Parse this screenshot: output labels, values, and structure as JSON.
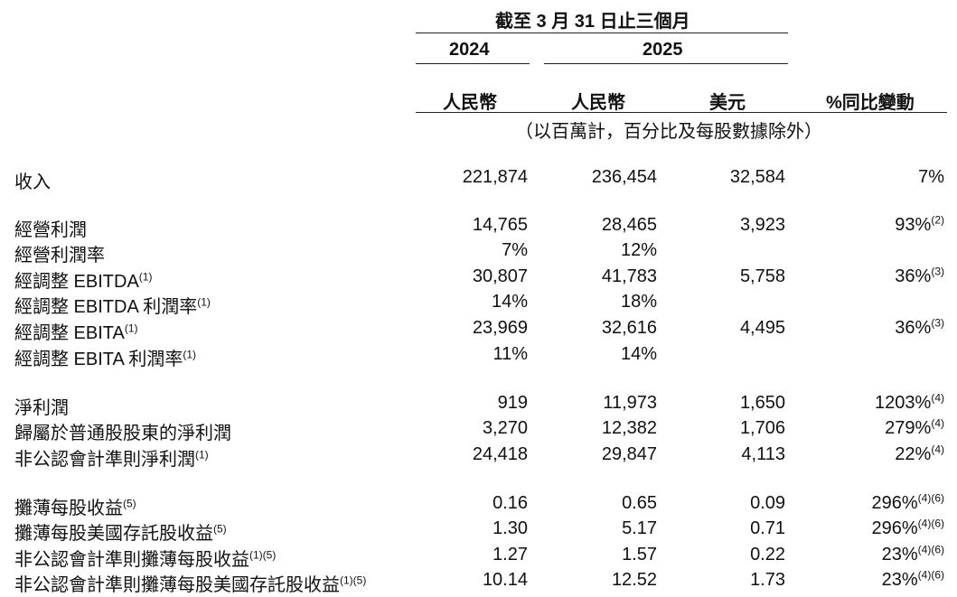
{
  "header": {
    "period": "截至 3 月 31 日止三個月",
    "years": [
      "2024",
      "2025"
    ],
    "columns": [
      "人民幣",
      "人民幣",
      "美元",
      "%同比變動"
    ],
    "unit_note": "（以百萬計，百分比及每股數據除外）"
  },
  "rows": [
    {
      "label": "收入",
      "sup": "",
      "rmb_2024": "221,874",
      "rmb_2025": "236,454",
      "usd_2025": "32,584",
      "yoy": "7%",
      "yoy_sup": ""
    },
    {
      "label": "經營利潤",
      "sup": "",
      "rmb_2024": "14,765",
      "rmb_2025": "28,465",
      "usd_2025": "3,923",
      "yoy": "93%",
      "yoy_sup": "(2)"
    },
    {
      "label": "經營利潤率",
      "sup": "",
      "rmb_2024": "7%",
      "rmb_2025": "12%",
      "usd_2025": "",
      "yoy": "",
      "yoy_sup": ""
    },
    {
      "label": "經調整 EBITDA",
      "sup": "(1)",
      "rmb_2024": "30,807",
      "rmb_2025": "41,783",
      "usd_2025": "5,758",
      "yoy": "36%",
      "yoy_sup": "(3)"
    },
    {
      "label": "經調整 EBITDA 利潤率",
      "sup": "(1)",
      "rmb_2024": "14%",
      "rmb_2025": "18%",
      "usd_2025": "",
      "yoy": "",
      "yoy_sup": ""
    },
    {
      "label": "經調整 EBITA",
      "sup": "(1)",
      "rmb_2024": "23,969",
      "rmb_2025": "32,616",
      "usd_2025": "4,495",
      "yoy": "36%",
      "yoy_sup": "(3)"
    },
    {
      "label": "經調整 EBITA 利潤率",
      "sup": "(1)",
      "rmb_2024": "11%",
      "rmb_2025": "14%",
      "usd_2025": "",
      "yoy": "",
      "yoy_sup": ""
    },
    {
      "label": "淨利潤",
      "sup": "",
      "rmb_2024": "919",
      "rmb_2025": "11,973",
      "usd_2025": "1,650",
      "yoy": "1203%",
      "yoy_sup": "(4)"
    },
    {
      "label": "歸屬於普通股股東的淨利潤",
      "sup": "",
      "rmb_2024": "3,270",
      "rmb_2025": "12,382",
      "usd_2025": "1,706",
      "yoy": "279%",
      "yoy_sup": "(4)"
    },
    {
      "label": "非公認會計準則淨利潤",
      "sup": "(1)",
      "rmb_2024": "24,418",
      "rmb_2025": "29,847",
      "usd_2025": "4,113",
      "yoy": "22%",
      "yoy_sup": "(4)"
    },
    {
      "label": "攤薄每股收益",
      "sup": "(5)",
      "rmb_2024": "0.16",
      "rmb_2025": "0.65",
      "usd_2025": "0.09",
      "yoy": "296%",
      "yoy_sup": "(4)(6)"
    },
    {
      "label": "攤薄每股美國存託股收益",
      "sup": "(5)",
      "rmb_2024": "1.30",
      "rmb_2025": "5.17",
      "usd_2025": "0.71",
      "yoy": "296%",
      "yoy_sup": "(4)(6)"
    },
    {
      "label": "非公認會計準則攤薄每股收益",
      "sup": "(1)(5)",
      "rmb_2024": "1.27",
      "rmb_2025": "1.57",
      "usd_2025": "0.22",
      "yoy": "23%",
      "yoy_sup": "(4)(6)"
    },
    {
      "label": "非公認會計準則攤薄每股美國存託股收益",
      "sup": "(1)(5)",
      "rmb_2024": "10.14",
      "rmb_2025": "12.52",
      "usd_2025": "1.73",
      "yoy": "23%",
      "yoy_sup": "(4)(6)"
    }
  ]
}
